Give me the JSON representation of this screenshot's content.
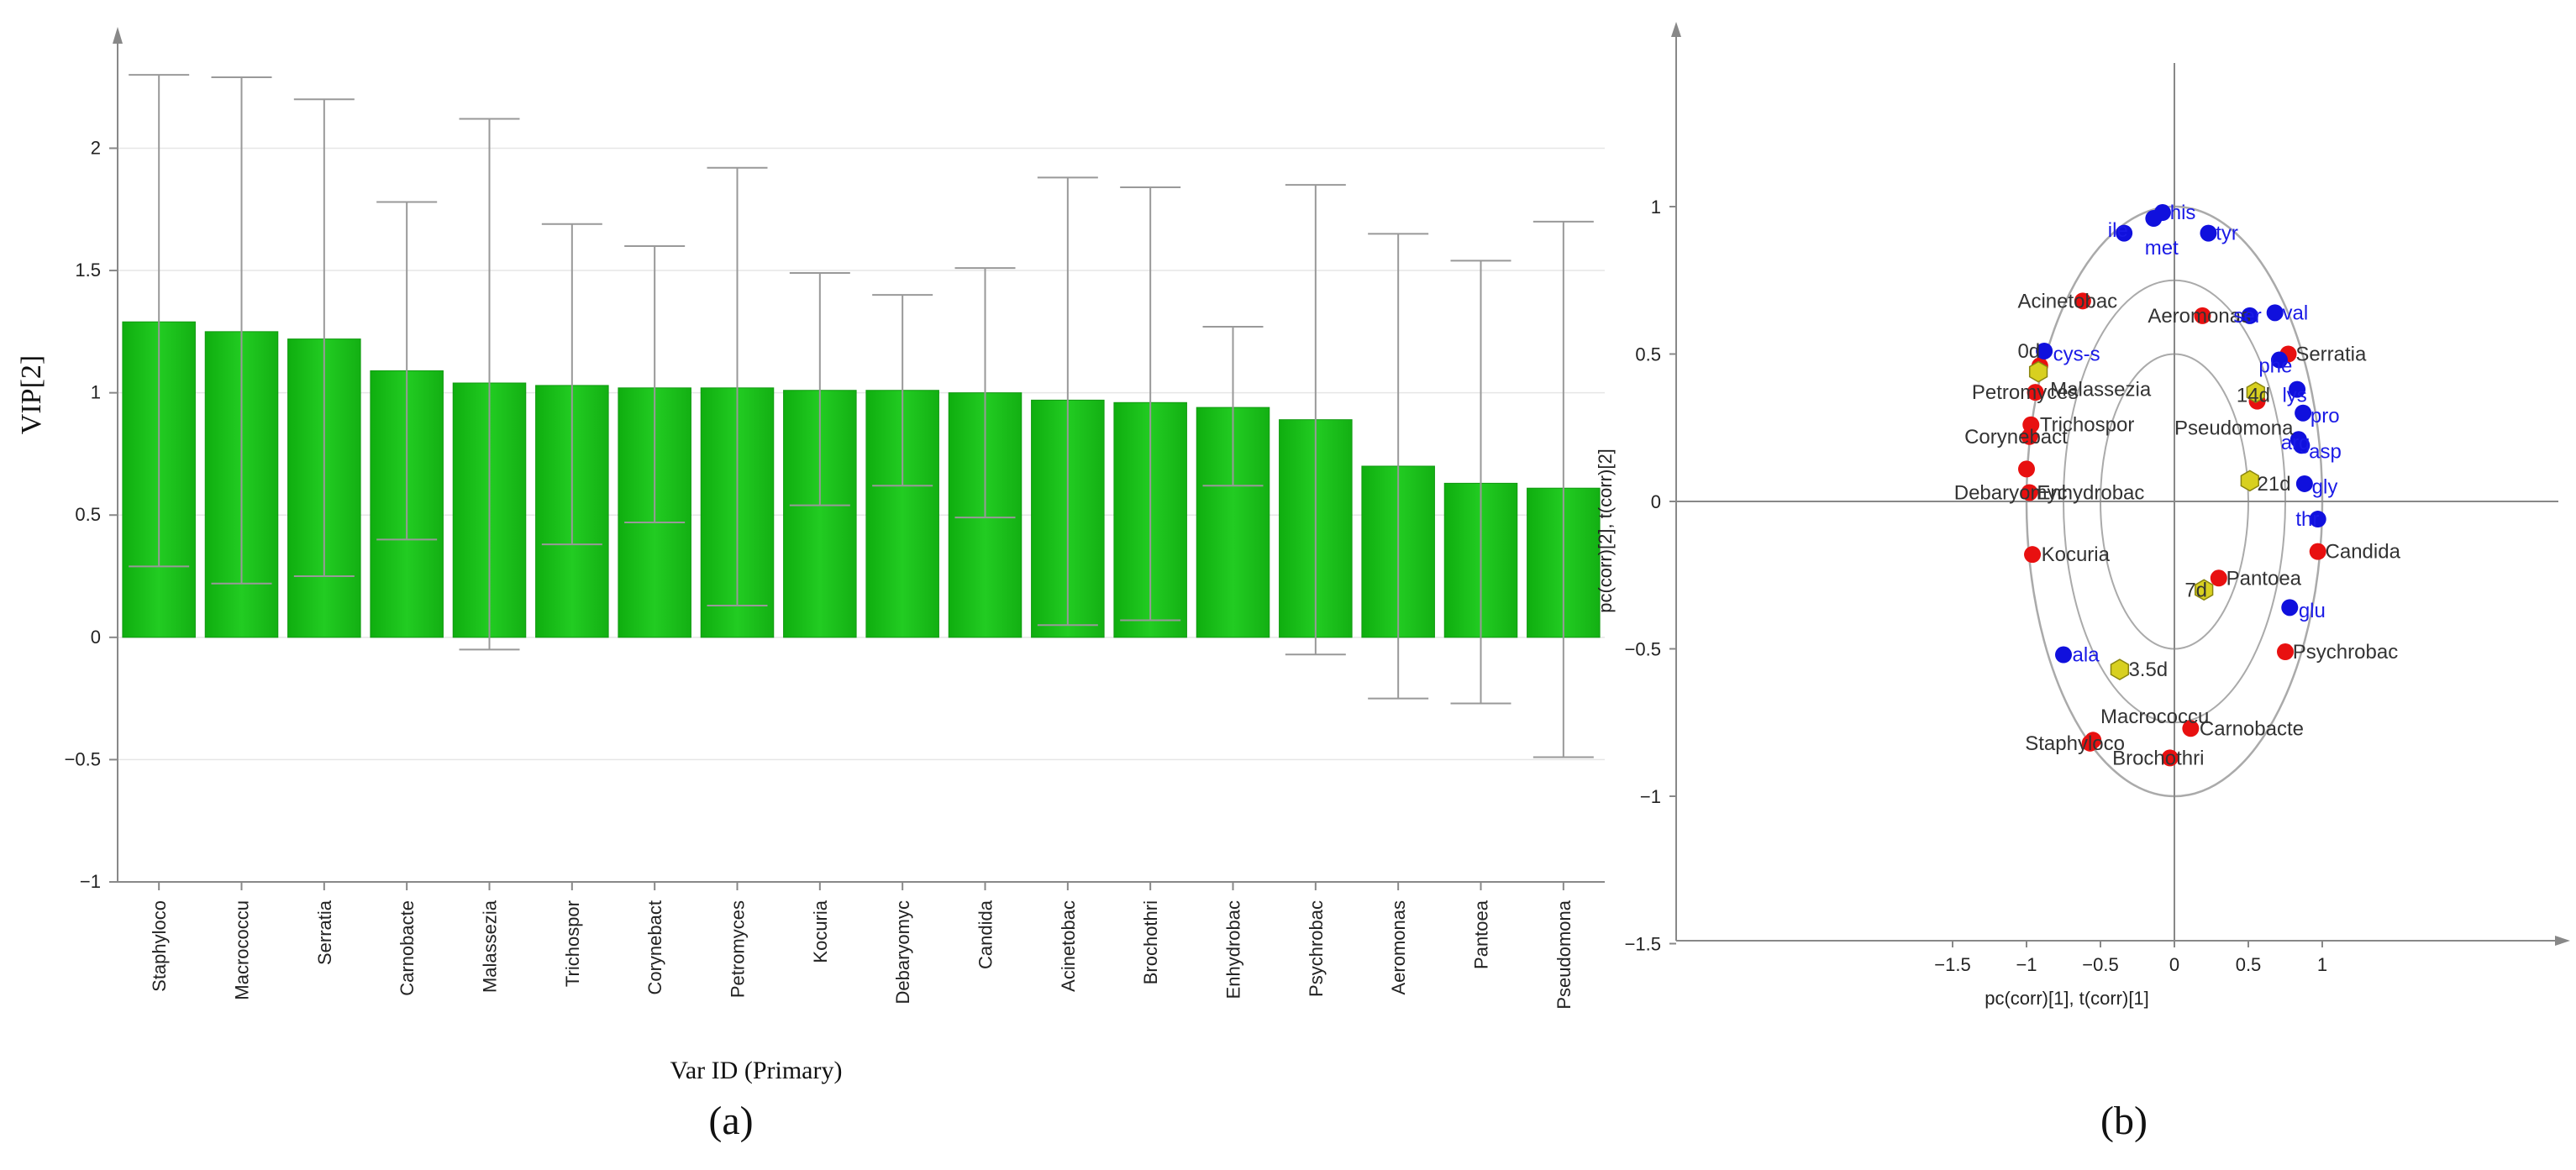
{
  "panels": {
    "a_label": "(a)",
    "b_label": "(b)"
  },
  "colors": {
    "bar": "#22cc22",
    "bar_edge": "#119911",
    "species": "#e81010",
    "amino": "#1010dd",
    "time": "#d8d020",
    "axis": "#888888",
    "circle": "#aaaaaa"
  },
  "chart_data": [
    {
      "type": "bar",
      "title": "",
      "xlabel": "Var ID (Primary)",
      "ylabel": "VIP[2]",
      "ylim": [
        -1,
        2.4
      ],
      "yticks": [
        -1,
        -0.5,
        0,
        0.5,
        1,
        1.5,
        2
      ],
      "grid": true,
      "categories": [
        "Staphyloco",
        "Macrococcu",
        "Serratia",
        "Carnobacte",
        "Malassezia",
        "Trichospor",
        "Corynebact",
        "Petromyces",
        "Kocuria",
        "Debaryomyc",
        "Candida",
        "Acinetobac",
        "Brochothri",
        "Enhydrobac",
        "Psychrobac",
        "Aeromonas",
        "Pantoea",
        "Pseudomona"
      ],
      "values": [
        1.29,
        1.25,
        1.22,
        1.09,
        1.04,
        1.03,
        1.02,
        1.02,
        1.01,
        1.01,
        1.0,
        0.97,
        0.96,
        0.94,
        0.89,
        0.7,
        0.63,
        0.61
      ],
      "error_low": [
        0.29,
        0.22,
        0.25,
        0.4,
        -0.05,
        0.38,
        0.47,
        0.13,
        0.54,
        0.62,
        0.49,
        0.05,
        0.07,
        0.62,
        -0.07,
        -0.25,
        -0.27,
        -0.49
      ],
      "error_high": [
        2.3,
        2.29,
        2.2,
        1.78,
        2.12,
        1.69,
        1.6,
        1.92,
        1.49,
        1.4,
        1.51,
        1.88,
        1.84,
        1.27,
        1.85,
        1.65,
        1.54,
        1.7
      ]
    },
    {
      "type": "scatter",
      "title": "",
      "xlabel": "pc(corr)[1], t(corr)[1]",
      "ylabel": "pc(corr)[2], t(corr)[2]",
      "xlim": [
        -1.5,
        1.5
      ],
      "ylim": [
        -1.5,
        1.5
      ],
      "xticks": [
        -1.5,
        -1,
        -0.5,
        0,
        0.5,
        1
      ],
      "yticks": [
        -1.5,
        -1,
        -0.5,
        0,
        0.5,
        1
      ],
      "circles": [
        1.0,
        0.75,
        0.5
      ],
      "series": [
        {
          "kind": "species",
          "points": [
            {
              "label": "Acinetobac",
              "x": -0.62,
              "y": 0.68,
              "lx": -1.06,
              "ly": 0.68
            },
            {
              "label": "Aeromonas",
              "x": 0.19,
              "y": 0.63,
              "lx": -0.18,
              "ly": 0.63
            },
            {
              "label": "Serratia",
              "x": 0.77,
              "y": 0.5,
              "lx": 0.82,
              "ly": 0.5
            },
            {
              "label": "Malassezia",
              "x": -0.91,
              "y": 0.46,
              "lx": -0.84,
              "ly": 0.38
            },
            {
              "label": "Petromyces",
              "x": -0.94,
              "y": 0.37,
              "lx": -1.37,
              "ly": 0.37
            },
            {
              "label": "Pseudomona",
              "x": 0.56,
              "y": 0.34,
              "lx": 0.0,
              "ly": 0.25
            },
            {
              "label": "Trichospor",
              "x": -0.97,
              "y": 0.26,
              "lx": -0.91,
              "ly": 0.26
            },
            {
              "label": "Corynebact",
              "x": -0.98,
              "y": 0.22,
              "lx": -1.42,
              "ly": 0.22
            },
            {
              "label": "Enhydrobac",
              "x": -1.0,
              "y": 0.11,
              "lx": -0.93,
              "ly": 0.03
            },
            {
              "label": "Debaryomyc",
              "x": -0.98,
              "y": 0.03,
              "lx": -1.49,
              "ly": 0.03
            },
            {
              "label": "Candida",
              "x": 0.97,
              "y": -0.17,
              "lx": 1.02,
              "ly": -0.17
            },
            {
              "label": "Kocuria",
              "x": -0.96,
              "y": -0.18,
              "lx": -0.9,
              "ly": -0.18
            },
            {
              "label": "Pantoea",
              "x": 0.3,
              "y": -0.26,
              "lx": 0.35,
              "ly": -0.26
            },
            {
              "label": "Psychrobac",
              "x": 0.75,
              "y": -0.51,
              "lx": 0.8,
              "ly": -0.51
            },
            {
              "label": "Macrococcu",
              "x": -0.55,
              "y": -0.81,
              "lx": -0.5,
              "ly": -0.73
            },
            {
              "label": "Staphyloco",
              "x": -0.57,
              "y": -0.82,
              "lx": -1.01,
              "ly": -0.82
            },
            {
              "label": "Carnobacte",
              "x": 0.11,
              "y": -0.77,
              "lx": 0.17,
              "ly": -0.77
            },
            {
              "label": "Brochothri",
              "x": -0.03,
              "y": -0.87,
              "lx": -0.42,
              "ly": -0.87
            }
          ]
        },
        {
          "kind": "amino",
          "points": [
            {
              "label": "his",
              "x": -0.08,
              "y": 0.98,
              "lx": -0.03,
              "ly": 0.98
            },
            {
              "label": "ile",
              "x": -0.34,
              "y": 0.91,
              "lx": -0.45,
              "ly": 0.92
            },
            {
              "label": "met",
              "x": -0.14,
              "y": 0.96,
              "lx": -0.2,
              "ly": 0.86
            },
            {
              "label": "tyr",
              "x": 0.23,
              "y": 0.91,
              "lx": 0.28,
              "ly": 0.91
            },
            {
              "label": "ser",
              "x": 0.51,
              "y": 0.63,
              "lx": 0.4,
              "ly": 0.63
            },
            {
              "label": "val",
              "x": 0.68,
              "y": 0.64,
              "lx": 0.73,
              "ly": 0.64
            },
            {
              "label": "cys-s",
              "x": -0.88,
              "y": 0.51,
              "lx": -0.82,
              "ly": 0.5
            },
            {
              "label": "phe",
              "x": 0.71,
              "y": 0.48,
              "lx": 0.57,
              "ly": 0.46
            },
            {
              "label": "lys",
              "x": 0.83,
              "y": 0.38,
              "lx": 0.73,
              "ly": 0.36
            },
            {
              "label": "pro",
              "x": 0.87,
              "y": 0.3,
              "lx": 0.92,
              "ly": 0.29
            },
            {
              "label": "arg",
              "x": 0.84,
              "y": 0.21,
              "lx": 0.72,
              "ly": 0.2
            },
            {
              "label": "asp",
              "x": 0.86,
              "y": 0.19,
              "lx": 0.91,
              "ly": 0.17
            },
            {
              "label": "gly",
              "x": 0.88,
              "y": 0.06,
              "lx": 0.93,
              "ly": 0.05
            },
            {
              "label": "thr",
              "x": 0.97,
              "y": -0.06,
              "lx": 0.82,
              "ly": -0.06
            },
            {
              "label": "glu",
              "x": 0.78,
              "y": -0.36,
              "lx": 0.84,
              "ly": -0.37
            },
            {
              "label": "ala",
              "x": -0.75,
              "y": -0.52,
              "lx": -0.69,
              "ly": -0.52
            }
          ]
        },
        {
          "kind": "time",
          "points": [
            {
              "label": "0d",
              "x": -0.92,
              "y": 0.44,
              "lx": -1.06,
              "ly": 0.51
            },
            {
              "label": "14d",
              "x": 0.55,
              "y": 0.37,
              "lx": 0.42,
              "ly": 0.36
            },
            {
              "label": "21d",
              "x": 0.51,
              "y": 0.07,
              "lx": 0.56,
              "ly": 0.06
            },
            {
              "label": "7d",
              "x": 0.2,
              "y": -0.3,
              "lx": 0.07,
              "ly": -0.3
            },
            {
              "label": "3.5d",
              "x": -0.37,
              "y": -0.57,
              "lx": -0.31,
              "ly": -0.57
            }
          ]
        }
      ]
    }
  ]
}
